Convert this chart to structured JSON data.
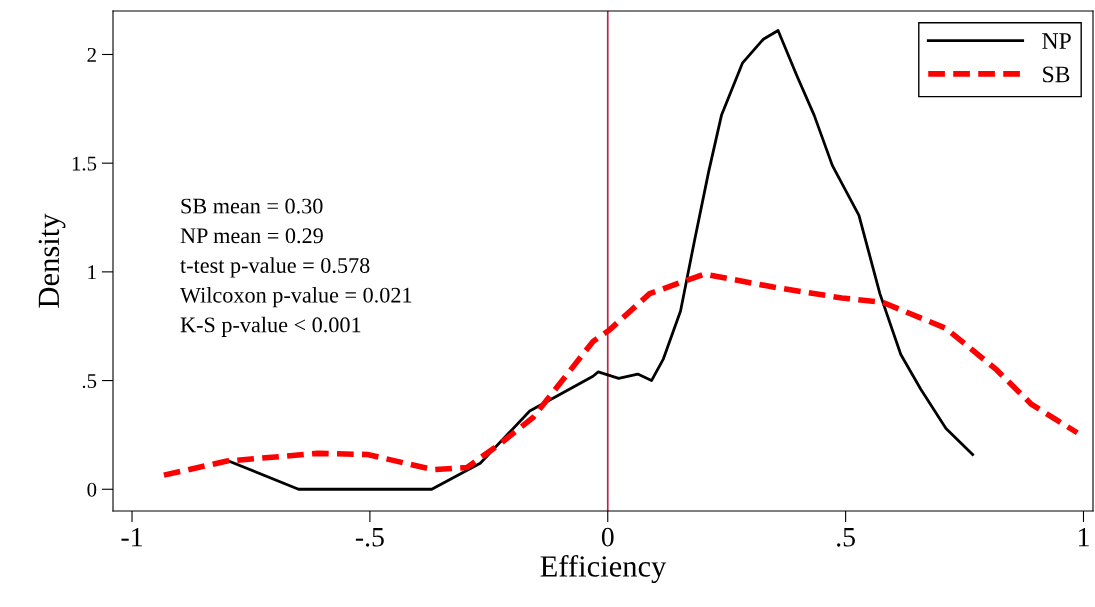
{
  "chart_data": {
    "type": "line",
    "xlabel": "Efficiency",
    "ylabel": "Density",
    "xlim": [
      -1.04,
      1.02
    ],
    "ylim": [
      -0.1,
      2.2
    ],
    "xticks": [
      {
        "value": -1,
        "label": "-1"
      },
      {
        "value": -0.5,
        "label": "-.5"
      },
      {
        "value": 0,
        "label": "0"
      },
      {
        "value": 0.5,
        "label": ".5"
      },
      {
        "value": 1,
        "label": "1"
      }
    ],
    "yticks": [
      {
        "value": 0,
        "label": "0"
      },
      {
        "value": 0.5,
        "label": ".5"
      },
      {
        "value": 1,
        "label": "1"
      },
      {
        "value": 1.5,
        "label": "1.5"
      },
      {
        "value": 2,
        "label": "2"
      }
    ],
    "grid": false,
    "legend": "top right",
    "marker": "none",
    "series": [
      {
        "name": "NP",
        "color": "#000000",
        "line_style": "solid",
        "x": [
          -0.797,
          -0.65,
          -0.37,
          -0.268,
          -0.164,
          -0.031,
          -0.02,
          0.023,
          0.063,
          0.092,
          0.117,
          0.153,
          0.182,
          0.212,
          0.239,
          0.283,
          0.327,
          0.358,
          0.398,
          0.434,
          0.472,
          0.528,
          0.572,
          0.616,
          0.658,
          0.711,
          0.767
        ],
        "values": [
          0.13,
          0,
          0,
          0.12,
          0.36,
          0.52,
          0.54,
          0.51,
          0.53,
          0.5,
          0.6,
          0.82,
          1.14,
          1.46,
          1.72,
          1.96,
          2.07,
          2.11,
          1.9,
          1.72,
          1.49,
          1.26,
          0.9,
          0.62,
          0.46,
          0.28,
          0.16
        ]
      },
      {
        "name": "SB",
        "color": "#ff0000",
        "line_style": "dashed",
        "x": [
          -0.933,
          -0.8,
          -0.61,
          -0.505,
          -0.367,
          -0.296,
          -0.226,
          -0.157,
          -0.031,
          0.002,
          0.088,
          0.203,
          0.348,
          0.492,
          0.578,
          0.711,
          0.817,
          0.891,
          0.987
        ],
        "values": [
          0.065,
          0.13,
          0.165,
          0.16,
          0.09,
          0.1,
          0.21,
          0.33,
          0.68,
          0.73,
          0.9,
          0.99,
          0.93,
          0.88,
          0.86,
          0.74,
          0.55,
          0.39,
          0.26
        ]
      }
    ],
    "ref_lines": [
      {
        "axis": "x",
        "value": 0,
        "color": "#c0204a"
      }
    ],
    "annotations": [
      "SB mean = 0.30",
      "NP mean = 0.29",
      "t-test p-value = 0.578",
      "Wilcoxon p-value = 0.021",
      "K-S p-value < 0.001"
    ]
  }
}
